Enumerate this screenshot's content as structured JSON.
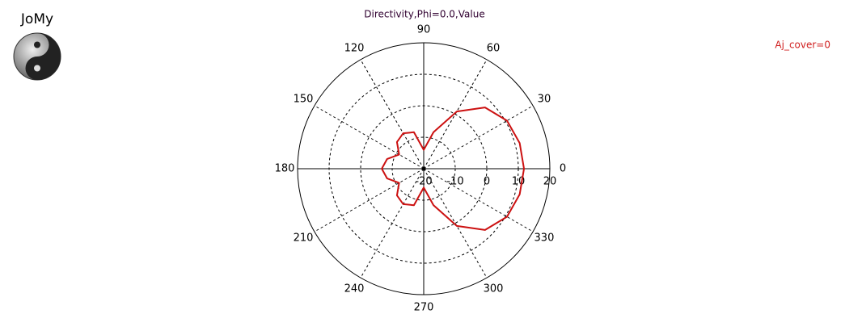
{
  "app_label": "JoMy",
  "chart_data": {
    "type": "polar",
    "title": "Directivity,Phi=0.0,Value",
    "annotation": "Aj_cover=0",
    "x": [
      0,
      15,
      30,
      45,
      60,
      75,
      90,
      105,
      120,
      135,
      150,
      165,
      180,
      195,
      210,
      225,
      240,
      255,
      270,
      285,
      300,
      315,
      330,
      345
    ],
    "series": [
      {
        "color": "#cc1111",
        "values": [
          11.8,
          11.5,
          10.5,
          7.5,
          1,
          -8,
          -14,
          -8,
          -7,
          -8,
          -11,
          -8,
          -6.7,
          -8,
          -11,
          -8,
          -7,
          -8,
          -14,
          -8,
          1,
          7.5,
          10.5,
          11.5
        ]
      }
    ],
    "rlim": [
      -20,
      20
    ],
    "rticks": [
      -20,
      -10,
      0,
      10,
      20
    ],
    "thetaticks": [
      0,
      30,
      60,
      90,
      120,
      150,
      180,
      210,
      240,
      270,
      300,
      330
    ],
    "grid": true
  }
}
